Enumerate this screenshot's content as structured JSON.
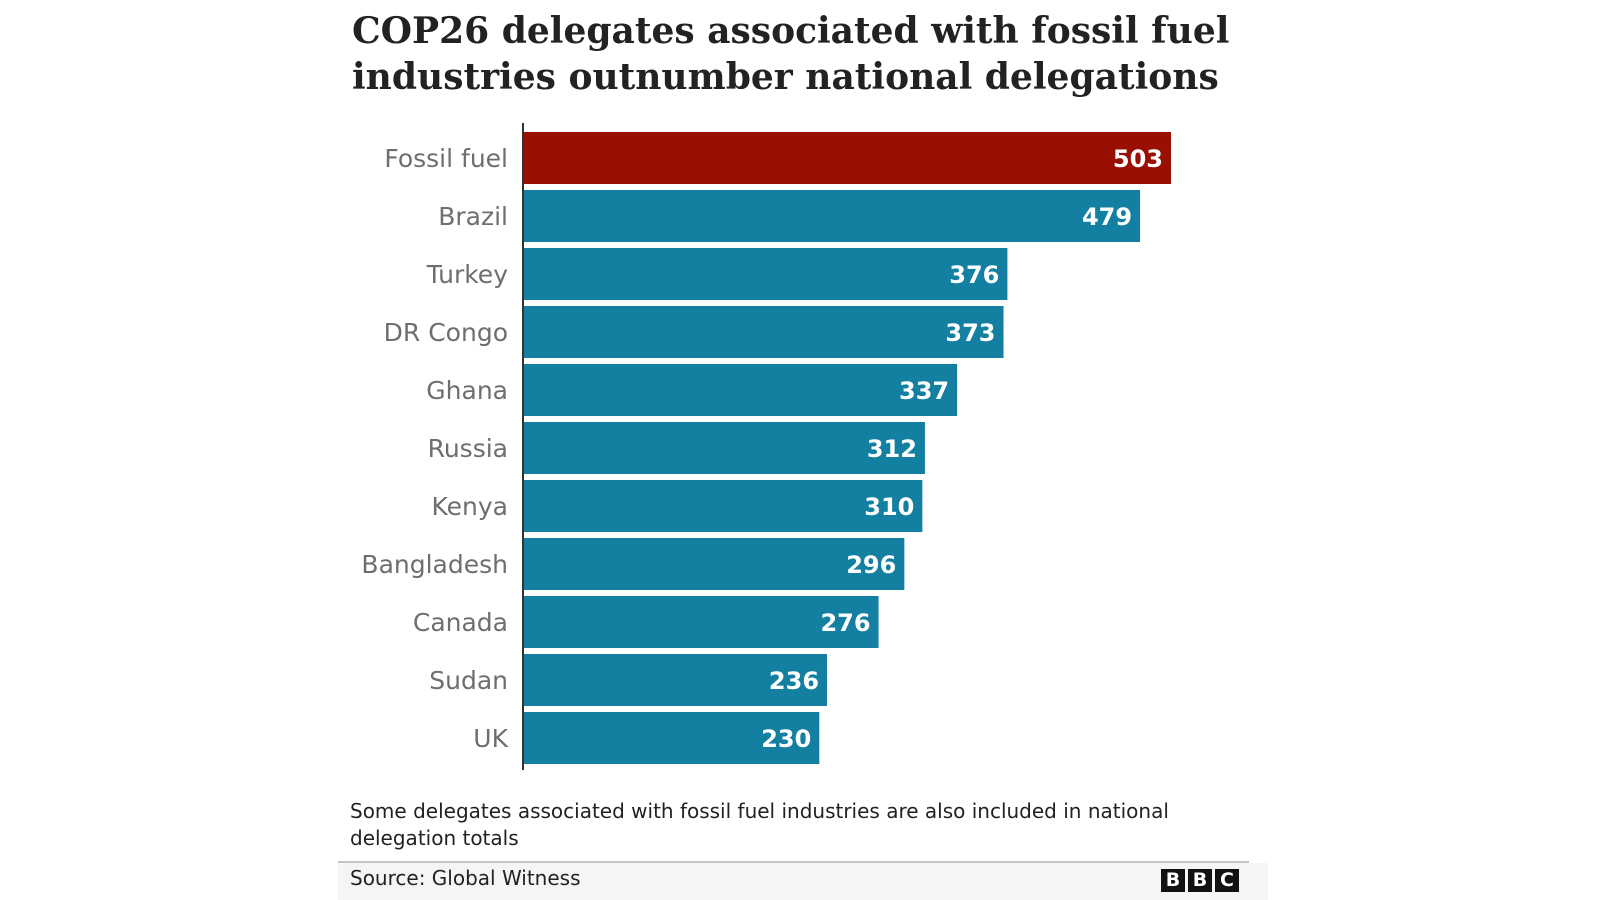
{
  "chart_data": {
    "type": "bar",
    "orientation": "horizontal",
    "title": "COP26 delegates associated with fossil fuel industries outnumber national delegations",
    "title_lines": [
      "COP26 delegates associated with fossil fuel",
      "industries outnumber national delegations"
    ],
    "categories": [
      "Fossil fuel",
      "Brazil",
      "Turkey",
      "DR Congo",
      "Ghana",
      "Russia",
      "Kenya",
      "Bangladesh",
      "Canada",
      "Sudan",
      "UK"
    ],
    "values": [
      503,
      479,
      376,
      373,
      337,
      312,
      310,
      296,
      276,
      236,
      230
    ],
    "bar_colors": [
      "#990f02",
      "#1380a1",
      "#1380a1",
      "#1380a1",
      "#1380a1",
      "#1380a1",
      "#1380a1",
      "#1380a1",
      "#1380a1",
      "#1380a1",
      "#1380a1"
    ],
    "xlim": [
      0,
      503
    ],
    "grid": false,
    "data_labels": "inside-end",
    "xlabel": "",
    "ylabel": ""
  },
  "note": "Some delegates associated with fossil fuel industries are also included in national delegation totals",
  "source": "Source: Global Witness",
  "logo": [
    "B",
    "B",
    "C"
  ],
  "colors": {
    "highlight": "#990f02",
    "bar": "#1380a1",
    "category_label": "#6e6e6e",
    "text": "#222222"
  }
}
